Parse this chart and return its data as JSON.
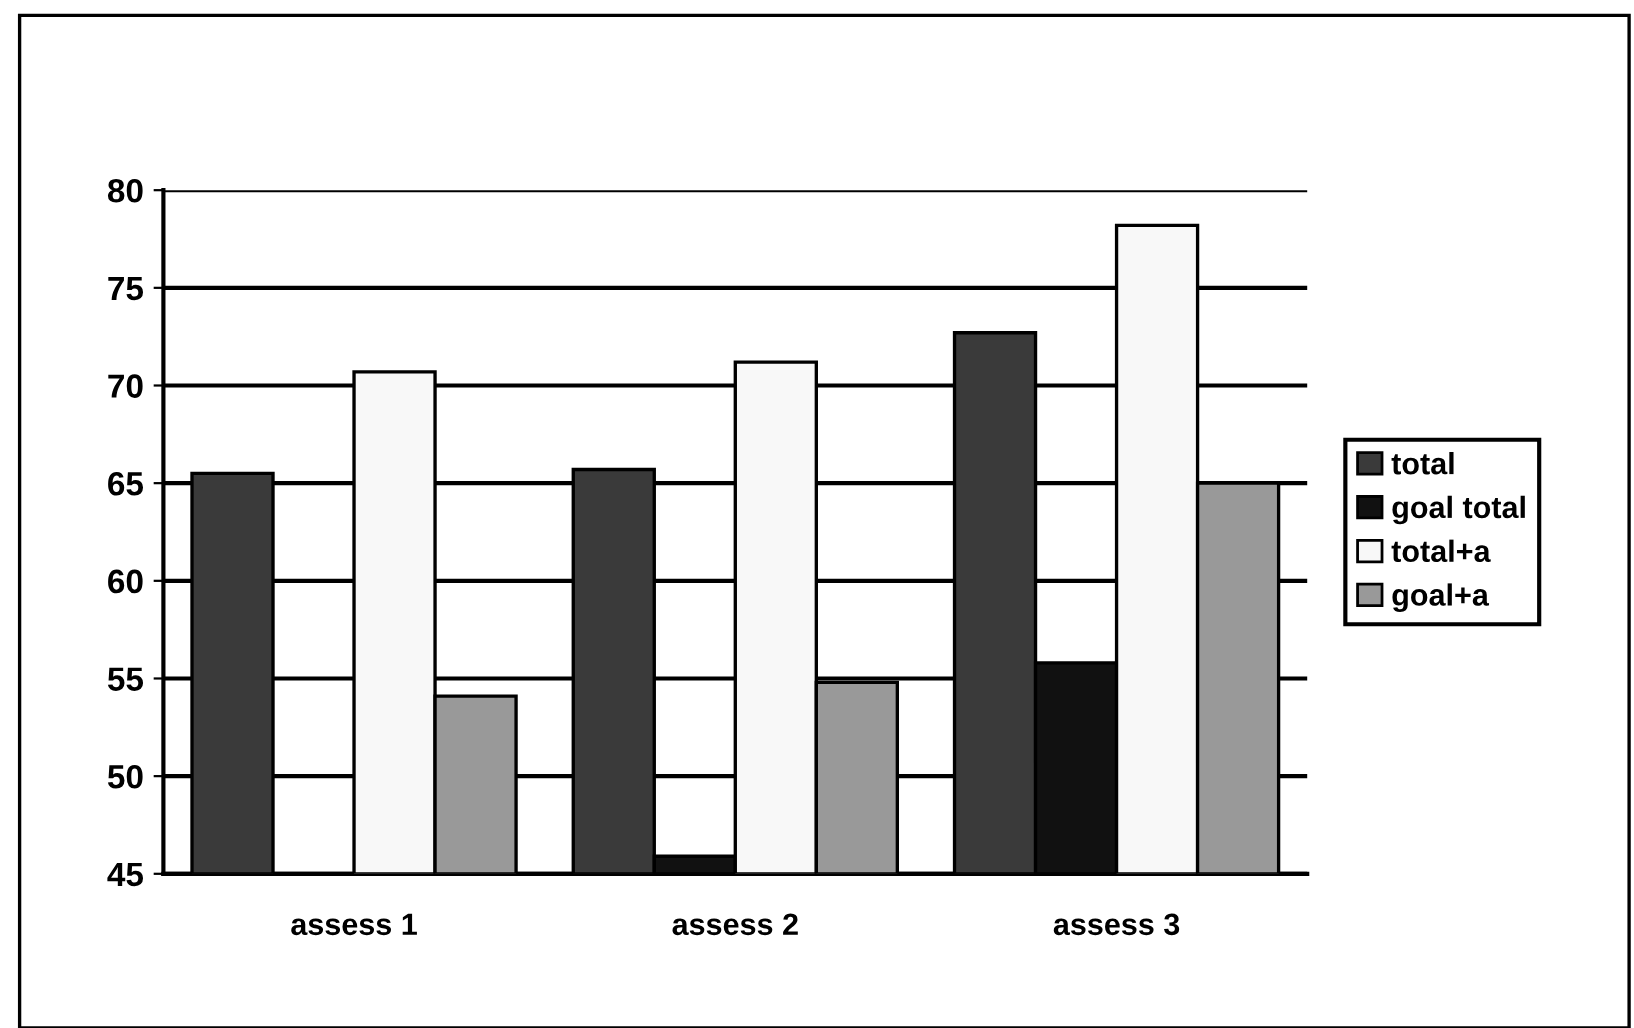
{
  "chart_data": {
    "type": "bar",
    "categories": [
      "assess 1",
      "assess 2",
      "assess 3"
    ],
    "series": [
      {
        "name": "total",
        "color": "#3a3a3a",
        "values": [
          65.5,
          65.7,
          72.7
        ]
      },
      {
        "name": "goal total",
        "color": "#111111",
        "values": [
          null,
          45.9,
          55.8
        ]
      },
      {
        "name": "total+a",
        "color": "#f8f8f8",
        "values": [
          70.7,
          71.2,
          78.2
        ]
      },
      {
        "name": "goal+a",
        "color": "#999999",
        "values": [
          54.1,
          54.8,
          65.0
        ]
      }
    ],
    "ylim": [
      45,
      80
    ],
    "yticks": [
      45,
      50,
      55,
      60,
      65,
      70,
      75,
      80
    ],
    "grid": "y",
    "legend": "right"
  }
}
